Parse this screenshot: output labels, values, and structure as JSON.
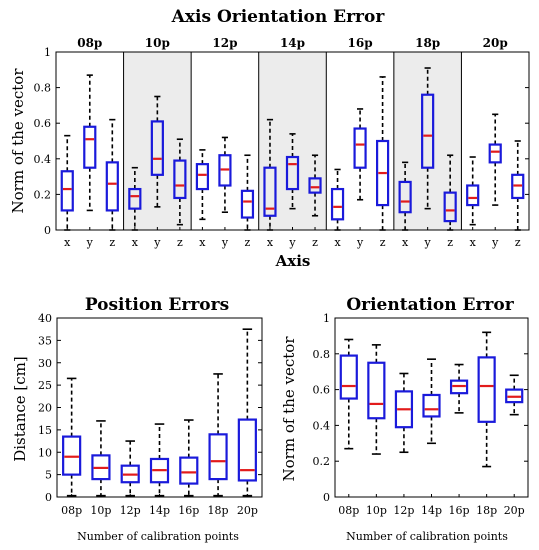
{
  "chart_data": [
    {
      "type": "box",
      "title": "Axis Orientation Error",
      "xlabel": "Axis",
      "ylabel": "Norm of the vector",
      "ylim": [
        0,
        1
      ],
      "yticks": [
        "0",
        "0.2",
        "0.4",
        "0.6",
        "0.8",
        "1"
      ],
      "groups": [
        "08p",
        "10p",
        "12p",
        "14p",
        "16p",
        "18p",
        "20p"
      ],
      "categories": [
        "x",
        "y",
        "z"
      ],
      "shaded_groups": [
        "10p",
        "14p",
        "18p"
      ],
      "box_color": "#1a1adb",
      "median_color": "#e21b1b",
      "boxes": [
        {
          "group": "08p",
          "axis": "x",
          "whisker_low": 0.0,
          "q1": 0.11,
          "median": 0.23,
          "q3": 0.33,
          "whisker_high": 0.53
        },
        {
          "group": "08p",
          "axis": "y",
          "whisker_low": 0.11,
          "q1": 0.35,
          "median": 0.51,
          "q3": 0.58,
          "whisker_high": 0.87
        },
        {
          "group": "08p",
          "axis": "z",
          "whisker_low": 0.0,
          "q1": 0.11,
          "median": 0.26,
          "q3": 0.38,
          "whisker_high": 0.62
        },
        {
          "group": "10p",
          "axis": "x",
          "whisker_low": 0.0,
          "q1": 0.12,
          "median": 0.19,
          "q3": 0.23,
          "whisker_high": 0.35
        },
        {
          "group": "10p",
          "axis": "y",
          "whisker_low": 0.13,
          "q1": 0.31,
          "median": 0.4,
          "q3": 0.61,
          "whisker_high": 0.75
        },
        {
          "group": "10p",
          "axis": "z",
          "whisker_low": 0.03,
          "q1": 0.18,
          "median": 0.25,
          "q3": 0.39,
          "whisker_high": 0.51
        },
        {
          "group": "12p",
          "axis": "x",
          "whisker_low": 0.06,
          "q1": 0.23,
          "median": 0.31,
          "q3": 0.37,
          "whisker_high": 0.45
        },
        {
          "group": "12p",
          "axis": "y",
          "whisker_low": 0.1,
          "q1": 0.25,
          "median": 0.34,
          "q3": 0.42,
          "whisker_high": 0.52
        },
        {
          "group": "12p",
          "axis": "z",
          "whisker_low": 0.0,
          "q1": 0.07,
          "median": 0.16,
          "q3": 0.22,
          "whisker_high": 0.42
        },
        {
          "group": "14p",
          "axis": "x",
          "whisker_low": 0.0,
          "q1": 0.08,
          "median": 0.12,
          "q3": 0.35,
          "whisker_high": 0.62
        },
        {
          "group": "14p",
          "axis": "y",
          "whisker_low": 0.12,
          "q1": 0.23,
          "median": 0.37,
          "q3": 0.41,
          "whisker_high": 0.54
        },
        {
          "group": "14p",
          "axis": "z",
          "whisker_low": 0.08,
          "q1": 0.21,
          "median": 0.24,
          "q3": 0.29,
          "whisker_high": 0.42
        },
        {
          "group": "16p",
          "axis": "x",
          "whisker_low": 0.0,
          "q1": 0.06,
          "median": 0.13,
          "q3": 0.23,
          "whisker_high": 0.34
        },
        {
          "group": "16p",
          "axis": "y",
          "whisker_low": 0.17,
          "q1": 0.35,
          "median": 0.48,
          "q3": 0.57,
          "whisker_high": 0.68
        },
        {
          "group": "16p",
          "axis": "z",
          "whisker_low": 0.0,
          "q1": 0.14,
          "median": 0.32,
          "q3": 0.5,
          "whisker_high": 0.86
        },
        {
          "group": "18p",
          "axis": "x",
          "whisker_low": 0.0,
          "q1": 0.1,
          "median": 0.16,
          "q3": 0.27,
          "whisker_high": 0.38
        },
        {
          "group": "18p",
          "axis": "y",
          "whisker_low": 0.12,
          "q1": 0.35,
          "median": 0.53,
          "q3": 0.76,
          "whisker_high": 0.91
        },
        {
          "group": "18p",
          "axis": "z",
          "whisker_low": 0.0,
          "q1": 0.05,
          "median": 0.11,
          "q3": 0.21,
          "whisker_high": 0.42
        },
        {
          "group": "20p",
          "axis": "x",
          "whisker_low": 0.03,
          "q1": 0.14,
          "median": 0.18,
          "q3": 0.25,
          "whisker_high": 0.41
        },
        {
          "group": "20p",
          "axis": "y",
          "whisker_low": 0.14,
          "q1": 0.38,
          "median": 0.44,
          "q3": 0.48,
          "whisker_high": 0.65
        },
        {
          "group": "20p",
          "axis": "z",
          "whisker_low": 0.0,
          "q1": 0.18,
          "median": 0.25,
          "q3": 0.31,
          "whisker_high": 0.5
        }
      ]
    },
    {
      "type": "box",
      "title": "Position Errors",
      "xlabel": "Number of calibration points",
      "ylabel": "Distance [cm]",
      "ylim": [
        0,
        40
      ],
      "yticks": [
        "0",
        "5",
        "10",
        "15",
        "20",
        "25",
        "30",
        "35",
        "40"
      ],
      "categories": [
        "08p",
        "10p",
        "12p",
        "14p",
        "16p",
        "18p",
        "20p"
      ],
      "box_color": "#1a1adb",
      "median_color": "#e21b1b",
      "boxes": [
        {
          "category": "08p",
          "whisker_low": 0.3,
          "q1": 5,
          "median": 9,
          "q3": 13.5,
          "whisker_high": 26.5
        },
        {
          "category": "10p",
          "whisker_low": 0.3,
          "q1": 4,
          "median": 6.5,
          "q3": 9.3,
          "whisker_high": 17
        },
        {
          "category": "12p",
          "whisker_low": 0.3,
          "q1": 3.3,
          "median": 5,
          "q3": 7,
          "whisker_high": 12.5
        },
        {
          "category": "14p",
          "whisker_low": 0.3,
          "q1": 3.3,
          "median": 6,
          "q3": 8.5,
          "whisker_high": 16.3
        },
        {
          "category": "16p",
          "whisker_low": 0.3,
          "q1": 3,
          "median": 5.5,
          "q3": 8.8,
          "whisker_high": 17.2
        },
        {
          "category": "18p",
          "whisker_low": 0.3,
          "q1": 4,
          "median": 8,
          "q3": 14,
          "whisker_high": 27.5
        },
        {
          "category": "20p",
          "whisker_low": 0.3,
          "q1": 3.7,
          "median": 6,
          "q3": 17.3,
          "whisker_high": 37.5
        }
      ]
    },
    {
      "type": "box",
      "title": "Orientation Error",
      "xlabel": "Number of calibration points",
      "ylabel": "Norm of the vector",
      "ylim": [
        0,
        1
      ],
      "yticks": [
        "0",
        "0.2",
        "0.4",
        "0.6",
        "0.8",
        "1"
      ],
      "categories": [
        "08p",
        "10p",
        "12p",
        "14p",
        "16p",
        "18p",
        "20p"
      ],
      "box_color": "#1a1adb",
      "median_color": "#e21b1b",
      "boxes": [
        {
          "category": "08p",
          "whisker_low": 0.27,
          "q1": 0.55,
          "median": 0.62,
          "q3": 0.79,
          "whisker_high": 0.88
        },
        {
          "category": "10p",
          "whisker_low": 0.24,
          "q1": 0.44,
          "median": 0.52,
          "q3": 0.75,
          "whisker_high": 0.85
        },
        {
          "category": "12p",
          "whisker_low": 0.25,
          "q1": 0.39,
          "median": 0.49,
          "q3": 0.59,
          "whisker_high": 0.69
        },
        {
          "category": "14p",
          "whisker_low": 0.3,
          "q1": 0.45,
          "median": 0.49,
          "q3": 0.57,
          "whisker_high": 0.77
        },
        {
          "category": "16p",
          "whisker_low": 0.47,
          "q1": 0.58,
          "median": 0.62,
          "q3": 0.65,
          "whisker_high": 0.74
        },
        {
          "category": "18p",
          "whisker_low": 0.17,
          "q1": 0.42,
          "median": 0.62,
          "q3": 0.78,
          "whisker_high": 0.92
        },
        {
          "category": "20p",
          "whisker_low": 0.46,
          "q1": 0.53,
          "median": 0.56,
          "q3": 0.6,
          "whisker_high": 0.68
        }
      ]
    }
  ]
}
